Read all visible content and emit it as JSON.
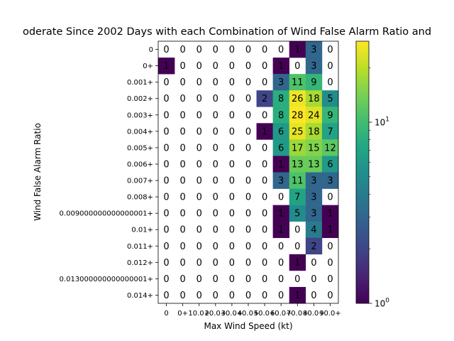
{
  "chart_data": {
    "type": "heatmap",
    "title": "oderate Since 2002 Days with each Combination of Wind False Alarm Ratio and",
    "xlabel": "Max Wind Speed (kt)",
    "ylabel": "Wind False Alarm Ratio",
    "x_categories": [
      "0",
      "0+",
      "10.0+",
      "20.0+",
      "30.0+",
      "40.0+",
      "50.0+",
      "60.0+",
      "70.0+",
      "80.0+",
      "90.0+"
    ],
    "x_tick_labels": [
      "0",
      "0+",
      "10.0+",
      "20.0+",
      "30.0+",
      "40.0+",
      "50.0+",
      "60.0+",
      "70.0+",
      "80.0+",
      "90.0+"
    ],
    "y_categories": [
      "0",
      "0+",
      "0.001+",
      "0.002+",
      "0.003+",
      "0.004+",
      "0.005+",
      "0.006+",
      "0.007+",
      "0.008+",
      "0.009000000000000001+",
      "0.01+",
      "0.011+",
      "0.012+",
      "0.013000000000000001+",
      "0.014+"
    ],
    "values": [
      [
        0,
        0,
        0,
        0,
        0,
        0,
        0,
        0,
        1,
        3,
        0
      ],
      [
        1,
        0,
        0,
        0,
        0,
        0,
        0,
        1,
        0,
        3,
        0
      ],
      [
        0,
        0,
        0,
        0,
        0,
        0,
        0,
        3,
        11,
        9,
        0
      ],
      [
        0,
        0,
        0,
        0,
        0,
        0,
        2,
        8,
        26,
        18,
        5
      ],
      [
        0,
        0,
        0,
        0,
        0,
        0,
        0,
        8,
        28,
        24,
        9
      ],
      [
        0,
        0,
        0,
        0,
        0,
        0,
        1,
        6,
        25,
        18,
        7
      ],
      [
        0,
        0,
        0,
        0,
        0,
        0,
        0,
        6,
        17,
        15,
        12
      ],
      [
        0,
        0,
        0,
        0,
        0,
        0,
        0,
        1,
        13,
        13,
        6
      ],
      [
        0,
        0,
        0,
        0,
        0,
        0,
        0,
        3,
        11,
        3,
        3
      ],
      [
        0,
        0,
        0,
        0,
        0,
        0,
        0,
        0,
        7,
        3,
        0
      ],
      [
        0,
        0,
        0,
        0,
        0,
        0,
        0,
        1,
        5,
        3,
        1
      ],
      [
        0,
        0,
        0,
        0,
        0,
        0,
        0,
        1,
        0,
        4,
        1
      ],
      [
        0,
        0,
        0,
        0,
        0,
        0,
        0,
        0,
        0,
        2,
        0
      ],
      [
        0,
        0,
        0,
        0,
        0,
        0,
        0,
        0,
        1,
        0,
        0
      ],
      [
        0,
        0,
        0,
        0,
        0,
        0,
        0,
        0,
        0,
        0,
        0
      ],
      [
        0,
        0,
        0,
        0,
        0,
        0,
        0,
        0,
        1,
        0,
        0
      ]
    ],
    "colorscale": "viridis",
    "color_scale_type": "log",
    "color_range": [
      1,
      28
    ],
    "colorbar_ticks": [
      {
        "value": 1,
        "label": "10",
        "exp": "0"
      },
      {
        "value": 10,
        "label": "10",
        "exp": "1"
      }
    ],
    "zero_cells_masked": true
  }
}
